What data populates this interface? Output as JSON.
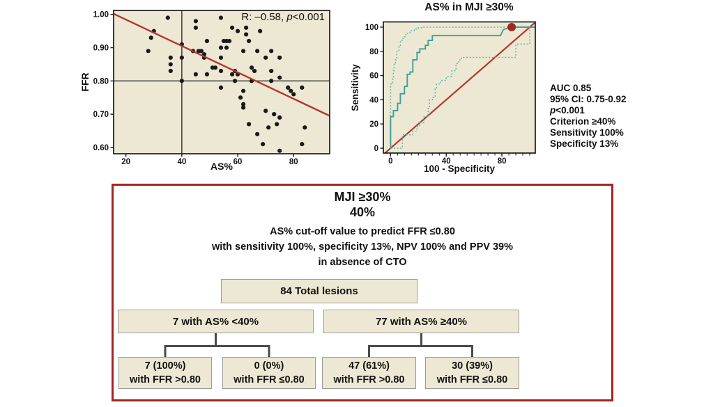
{
  "chart_data": [
    {
      "type": "scatter",
      "title": "",
      "xlabel": "AS%",
      "ylabel": "FFR",
      "annotation": {
        "pre": "R: –0.58, ",
        "italic": "p",
        "post": "<0.001"
      },
      "xlim": [
        15.6,
        92.9
      ],
      "ylim": [
        0.581,
        1.012
      ],
      "xticks": [
        20,
        40,
        60,
        80
      ],
      "yticks": [
        0.6,
        0.7,
        0.8,
        0.9,
        1.0
      ],
      "ref_lines": {
        "x": 40,
        "y": 0.8
      },
      "regression_line": {
        "x1": 15.6,
        "y1": 1.002,
        "x2": 92.9,
        "y2": 0.695
      },
      "colors": {
        "bg": "#ece8d3",
        "points": "#191919",
        "line": "#b5362b",
        "ref": "#2e2e2e"
      },
      "points": [
        [
          35,
          0.99
        ],
        [
          30,
          0.95
        ],
        [
          29,
          0.93
        ],
        [
          28,
          0.89
        ],
        [
          36,
          0.87
        ],
        [
          36,
          0.85
        ],
        [
          36,
          0.83
        ],
        [
          40,
          0.91
        ],
        [
          40,
          0.87
        ],
        [
          40,
          0.8
        ],
        [
          45,
          0.98
        ],
        [
          45,
          0.96
        ],
        [
          44,
          0.89
        ],
        [
          46,
          0.89
        ],
        [
          47,
          0.89
        ],
        [
          48,
          0.88
        ],
        [
          48,
          0.87
        ],
        [
          49,
          0.92
        ],
        [
          51,
          0.84
        ],
        [
          52,
          0.84
        ],
        [
          45,
          0.82
        ],
        [
          49,
          0.82
        ],
        [
          54,
          0.99
        ],
        [
          54,
          0.9
        ],
        [
          54,
          0.87
        ],
        [
          54,
          0.83
        ],
        [
          54,
          0.78
        ],
        [
          58,
          0.96
        ],
        [
          60,
          0.95
        ],
        [
          63,
          0.96
        ],
        [
          68,
          0.95
        ],
        [
          63,
          0.94
        ],
        [
          64,
          0.92
        ],
        [
          55,
          0.92
        ],
        [
          56,
          0.92
        ],
        [
          57,
          0.92
        ],
        [
          56,
          0.9
        ],
        [
          62,
          0.89
        ],
        [
          67,
          0.89
        ],
        [
          72,
          0.89
        ],
        [
          70,
          0.87
        ],
        [
          75,
          0.87
        ],
        [
          65,
          0.84
        ],
        [
          66,
          0.83
        ],
        [
          59,
          0.83
        ],
        [
          60,
          0.82
        ],
        [
          58,
          0.82
        ],
        [
          72,
          0.83
        ],
        [
          75,
          0.81
        ],
        [
          59,
          0.8
        ],
        [
          65,
          0.8
        ],
        [
          72,
          0.8
        ],
        [
          62,
          0.77
        ],
        [
          78,
          0.78
        ],
        [
          83,
          0.78
        ],
        [
          79,
          0.77
        ],
        [
          80,
          0.76
        ],
        [
          61,
          0.75
        ],
        [
          62,
          0.73
        ],
        [
          62,
          0.72
        ],
        [
          70,
          0.71
        ],
        [
          73,
          0.7
        ],
        [
          75,
          0.69
        ],
        [
          64,
          0.67
        ],
        [
          74,
          0.67
        ],
        [
          71,
          0.66
        ],
        [
          84,
          0.66
        ],
        [
          67,
          0.64
        ],
        [
          69,
          0.61
        ],
        [
          83,
          0.61
        ],
        [
          75,
          0.59
        ]
      ]
    },
    {
      "type": "line",
      "title": "AS% in MJI ≥30%",
      "xlabel": "100 - Specificity",
      "ylabel": "Sensitivity",
      "xlim": [
        -5.2,
        104
      ],
      "ylim": [
        -4.03,
        104.3
      ],
      "xticks_labeled": [
        0,
        40,
        80
      ],
      "yticks_labeled": [
        0,
        20,
        40,
        60,
        80,
        100
      ],
      "minor_tick_step": 5,
      "colors": {
        "bg": "#ece8d3",
        "roc": "#3f9e9c",
        "ci": "#63b3b0",
        "chance": "#b5362b",
        "marker": "#a02a1f"
      },
      "series": [
        {
          "name": "Chance line",
          "style": "chance",
          "points": [
            [
              -4,
              -4
            ],
            [
              103.8,
              103.8
            ]
          ]
        },
        {
          "name": "Upper 95% CI",
          "style": "ci",
          "points": [
            [
              0,
              0
            ],
            [
              0,
              53
            ],
            [
              1.5,
              53
            ],
            [
              1.5,
              57
            ],
            [
              2,
              57
            ],
            [
              2,
              64
            ],
            [
              2.5,
              64
            ],
            [
              2.5,
              70
            ],
            [
              3.5,
              70
            ],
            [
              3.5,
              73
            ],
            [
              4.5,
              73
            ],
            [
              4.5,
              80
            ],
            [
              6,
              80
            ],
            [
              6,
              84
            ],
            [
              7,
              84
            ],
            [
              7,
              89
            ],
            [
              9,
              89
            ],
            [
              9,
              92
            ],
            [
              11,
              92
            ],
            [
              11,
              95
            ],
            [
              14,
              95
            ],
            [
              14,
              97
            ],
            [
              17,
              97
            ],
            [
              17,
              98.5
            ],
            [
              20,
              98.5
            ],
            [
              20,
              99.5
            ],
            [
              23,
              99.5
            ],
            [
              23,
              100
            ],
            [
              103.5,
              100
            ]
          ]
        },
        {
          "name": "Lower 95% CI",
          "style": "ci",
          "points": [
            [
              0,
              0
            ],
            [
              8.5,
              0
            ],
            [
              8.5,
              11
            ],
            [
              16,
              11
            ],
            [
              16,
              14
            ],
            [
              19,
              14
            ],
            [
              19,
              18
            ],
            [
              21,
              18
            ],
            [
              21,
              21
            ],
            [
              24,
              21
            ],
            [
              24,
              26
            ],
            [
              27,
              26
            ],
            [
              27,
              33
            ],
            [
              28,
              33
            ],
            [
              28,
              40
            ],
            [
              30,
              40
            ],
            [
              30,
              42
            ],
            [
              32,
              42
            ],
            [
              32,
              49
            ],
            [
              33,
              49
            ],
            [
              33,
              53
            ],
            [
              36,
              53
            ],
            [
              36,
              56
            ],
            [
              40,
              56
            ],
            [
              40,
              59
            ],
            [
              44,
              59
            ],
            [
              44,
              64
            ],
            [
              47,
              64
            ],
            [
              47,
              70
            ],
            [
              49,
              70
            ],
            [
              49,
              73
            ],
            [
              51,
              73
            ],
            [
              51,
              75
            ],
            [
              90,
              75
            ],
            [
              90,
              86
            ],
            [
              100,
              86
            ],
            [
              100,
              100
            ]
          ]
        },
        {
          "name": "ROC curve",
          "style": "roc",
          "points": [
            [
              0,
              0
            ],
            [
              0,
              26
            ],
            [
              2,
              26
            ],
            [
              2,
              31
            ],
            [
              5,
              31
            ],
            [
              5,
              37
            ],
            [
              7,
              37
            ],
            [
              7,
              45
            ],
            [
              10,
              45
            ],
            [
              10,
              51
            ],
            [
              12,
              51
            ],
            [
              12,
              61
            ],
            [
              14,
              61
            ],
            [
              14,
              63
            ],
            [
              16,
              63
            ],
            [
              16,
              73
            ],
            [
              19,
              73
            ],
            [
              19,
              79
            ],
            [
              21,
              79
            ],
            [
              21,
              82
            ],
            [
              25,
              82
            ],
            [
              25,
              85
            ],
            [
              27,
              85
            ],
            [
              27,
              89
            ],
            [
              30,
              89
            ],
            [
              30,
              93
            ],
            [
              36,
              93
            ],
            [
              79,
              93
            ],
            [
              81,
              98
            ],
            [
              87,
              100
            ],
            [
              103.5,
              100
            ]
          ]
        }
      ],
      "operating_point": {
        "x": 87,
        "y": 100
      },
      "annotation": {
        "auc": "AUC 0.85",
        "ci": "95% CI: 0.75-0.92",
        "p_italic": "p",
        "p_rest": "<0.001",
        "criterion": "Criterion ≥40%",
        "sensitivity": "Sensitivity 100%",
        "specificity": "Specificity 13%"
      }
    }
  ],
  "flowchart": {
    "title_line1": "MJI ≥30%",
    "title_line2": "40%",
    "description_lines": [
      "AS% cut-off value to predict FFR ≤0.80",
      "with sensitivity 100%, specificity 13%, NPV 100% and PPV 39%",
      "in absence of CTO"
    ],
    "root": {
      "label": "84 Total lesions"
    },
    "branches": [
      {
        "label": "7 with AS% <40%",
        "children": [
          {
            "line1": "7 (100%)",
            "line2": "with FFR >0.80"
          },
          {
            "line1": "0 (0%)",
            "line2": "with FFR ≤0.80"
          }
        ]
      },
      {
        "label": "77 with AS% ≥40%",
        "children": [
          {
            "line1": "47 (61%)",
            "line2": "with FFR >0.80"
          },
          {
            "line1": "30 (39%)",
            "line2": "with FFR ≤0.80"
          }
        ]
      }
    ],
    "colors": {
      "border": "#a32421",
      "box_bg": "#ece8d3",
      "box_border": "#9a9a9a",
      "connector": "#4a4a4a"
    }
  }
}
